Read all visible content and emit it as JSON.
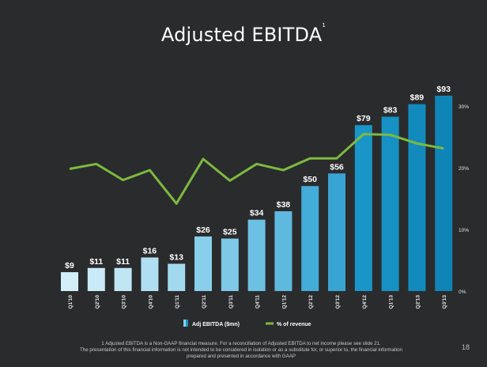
{
  "title": "Adjusted EBITDA",
  "title_superscript": "1",
  "chart_data": {
    "type": "bar",
    "title": "Adjusted EBITDA",
    "categories": [
      "Q1'10",
      "Q2'10",
      "Q3'10",
      "Q4'10",
      "Q1'11",
      "Q2'11",
      "Q3'11",
      "Q4'11",
      "Q1'12",
      "Q2'12",
      "Q3'12",
      "Q4'12",
      "Q1'13",
      "Q2'13",
      "Q3'13"
    ],
    "series": [
      {
        "name": "Adj EBITDA ($mn)",
        "type": "bar",
        "values": [
          9,
          11,
          11,
          16,
          13,
          26,
          25,
          34,
          38,
          50,
          56,
          79,
          83,
          89,
          93
        ],
        "labels": [
          "$9",
          "$11",
          "$11",
          "$16",
          "$13",
          "$26",
          "$25",
          "$34",
          "$38",
          "$50",
          "$56",
          "$79",
          "$83",
          "$89",
          "$93"
        ],
        "ylim": [
          0,
          93
        ]
      },
      {
        "name": "% of revenue",
        "type": "line",
        "axis": "right",
        "values": [
          19.7,
          20.5,
          17.9,
          19.5,
          14.1,
          21.3,
          17.8,
          20.5,
          19.5,
          21.4,
          21.4,
          25.3,
          25.2,
          23.8,
          23.0
        ],
        "color": "#7dba3f"
      }
    ],
    "y2_ticks": [
      {
        "value": 0,
        "label": "0%"
      },
      {
        "value": 10,
        "label": "10%"
      },
      {
        "value": 20,
        "label": "20%"
      },
      {
        "value": 30,
        "label": "30%"
      }
    ],
    "y2lim": [
      0,
      30
    ],
    "bar_colors": [
      "#d3eef8",
      "#c9eaf6",
      "#c0e6f4",
      "#b0dff1",
      "#a2d9ee",
      "#8acfea",
      "#7ec9e7",
      "#6cc1e3",
      "#5fb9df",
      "#44acd8",
      "#38a4d3",
      "#1a95c8",
      "#1790c3",
      "#138abd",
      "#0f84b7"
    ],
    "legend": "bottom-center"
  },
  "footnote": {
    "line1": "1 Adjusted EBITDA is a Non-GAAP financial measure. For a reconciliation of Adjusted EBITDA to net income please see slide 21.",
    "line2": "The presentation of this financial information is not intended to be considered in isolation or as a substitute for, or superior to, the financial information",
    "line3": "prepared and presented in accordance with GAAP"
  },
  "page_number": "18"
}
